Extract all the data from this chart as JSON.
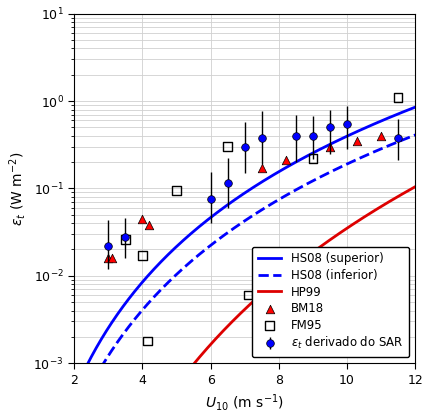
{
  "title": "",
  "xlabel": "$U_{10}$ (m s$^{-1}$)",
  "ylabel": "$\\epsilon_t$ (W m$^{-2}$)",
  "xlim": [
    2,
    12
  ],
  "ylim": [
    0.001,
    10
  ],
  "background_color": "#ffffff",
  "HS08_superior_color": "#0000ff",
  "HS08_inferior_color": "#0000ff",
  "HP99_color": "#dd0000",
  "BM18_x": [
    3.0,
    3.1,
    4.0,
    4.2,
    7.5,
    8.2,
    9.5,
    10.3,
    11.0
  ],
  "BM18_y": [
    0.016,
    0.016,
    0.045,
    0.038,
    0.17,
    0.21,
    0.3,
    0.35,
    0.4
  ],
  "FM95_x": [
    3.5,
    4.0,
    4.15,
    5.0,
    6.5,
    7.1,
    9.0,
    11.5
  ],
  "FM95_y": [
    0.026,
    0.017,
    0.0018,
    0.095,
    0.3,
    0.006,
    0.22,
    1.1
  ],
  "SAR_x": [
    3.0,
    3.5,
    6.0,
    6.5,
    7.0,
    7.5,
    8.5,
    9.0,
    9.5,
    10.0,
    11.5
  ],
  "SAR_y": [
    0.022,
    0.028,
    0.075,
    0.115,
    0.3,
    0.38,
    0.4,
    0.4,
    0.5,
    0.55,
    0.38
  ],
  "SAR_yerr_low": [
    0.01,
    0.012,
    0.035,
    0.055,
    0.15,
    0.19,
    0.2,
    0.18,
    0.25,
    0.27,
    0.17
  ],
  "SAR_yerr_high": [
    0.022,
    0.018,
    0.08,
    0.11,
    0.28,
    0.38,
    0.3,
    0.28,
    0.3,
    0.33,
    0.25
  ],
  "legend_loc": "lower right",
  "grid_color": "#d0d0d0",
  "fontsize": 9
}
